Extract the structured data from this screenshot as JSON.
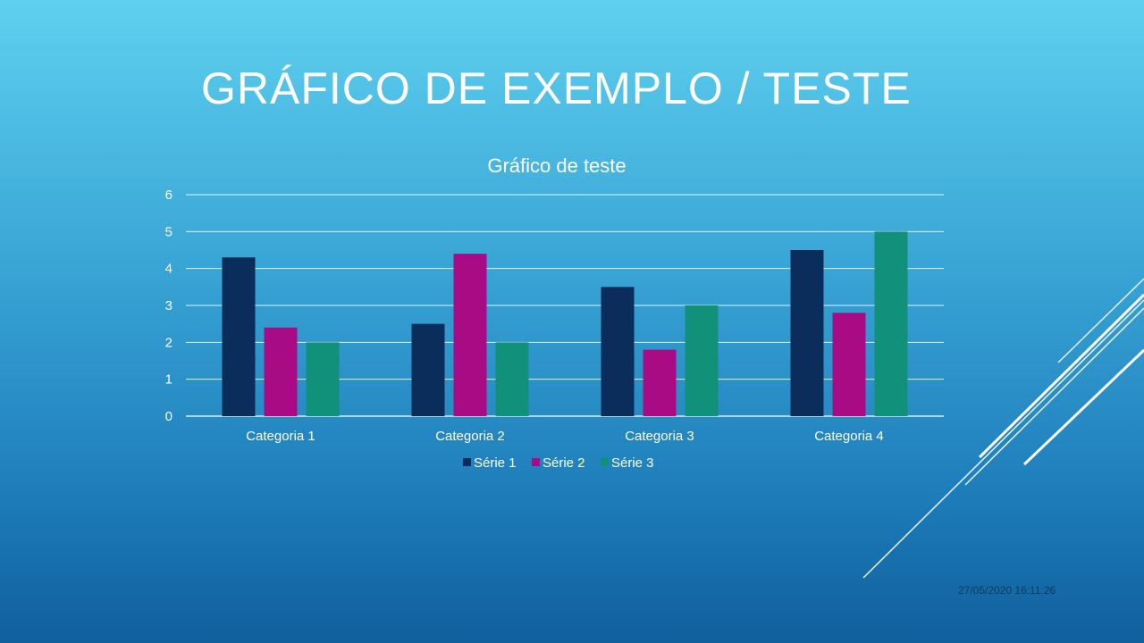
{
  "slide": {
    "title": "GRÁFICO DE EXEMPLO / TESTE",
    "timestamp": "27/05/2020 16:11:26"
  },
  "colors": {
    "serie1": "#0b2d5b",
    "serie2": "#a80b84",
    "serie3": "#12917a",
    "gridline": "#ffffff"
  },
  "chart_data": {
    "type": "bar",
    "title": "Gráfico de teste",
    "xlabel": "",
    "ylabel": "",
    "categories": [
      "Categoria 1",
      "Categoria 2",
      "Categoria 3",
      "Categoria 4"
    ],
    "series": [
      {
        "name": "Série 1",
        "values": [
          4.3,
          2.5,
          3.5,
          4.5
        ]
      },
      {
        "name": "Série 2",
        "values": [
          2.4,
          4.4,
          1.8,
          2.8
        ]
      },
      {
        "name": "Série 3",
        "values": [
          2,
          2,
          3,
          5
        ]
      }
    ],
    "ylim": [
      0,
      6
    ],
    "yticks": [
      "0",
      "1",
      "2",
      "3",
      "4",
      "5",
      "6"
    ],
    "grid": true,
    "legend": "bottom"
  }
}
